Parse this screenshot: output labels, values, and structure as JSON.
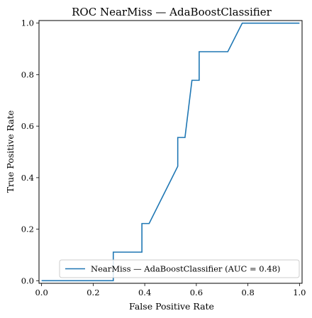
{
  "chart_data": {
    "type": "line",
    "title": "ROC NearMiss — AdaBoostClassifier",
    "xlabel": "False Positive Rate",
    "ylabel": "True Positive Rate",
    "xlim": [
      -0.01,
      1.01
    ],
    "ylim": [
      -0.01,
      1.01
    ],
    "xticks": [
      "0.0",
      "0.2",
      "0.4",
      "0.6",
      "0.8",
      "1.0"
    ],
    "yticks": [
      "0.0",
      "0.2",
      "0.4",
      "0.6",
      "0.8",
      "1.0"
    ],
    "grid": false,
    "legend_position": "lower-right",
    "series": [
      {
        "name": "NearMiss — AdaBoostClassifier (AUC = 0.48)",
        "color": "#1f77b4",
        "x": [
          0.0,
          0.278,
          0.278,
          0.389,
          0.389,
          0.417,
          0.528,
          0.528,
          0.556,
          0.583,
          0.583,
          0.611,
          0.611,
          0.722,
          0.778,
          0.778,
          1.0
        ],
        "y": [
          0.0,
          0.0,
          0.111,
          0.111,
          0.222,
          0.222,
          0.444,
          0.556,
          0.556,
          0.778,
          0.778,
          0.778,
          0.889,
          0.889,
          1.0,
          1.0,
          1.0
        ]
      }
    ]
  }
}
